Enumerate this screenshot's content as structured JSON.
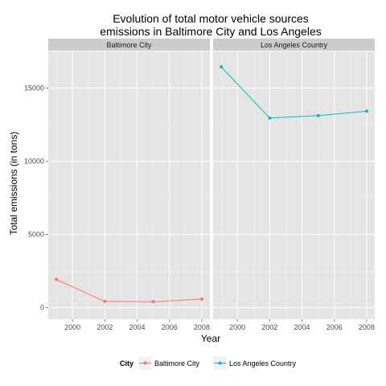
{
  "chart_data": {
    "type": "line",
    "title_line1": "Evolution of total motor vehicle sources",
    "title_line2": "emissions in Baltimore City and Los Angeles",
    "xlabel": "Year",
    "ylabel": "Total emissions (in tons)",
    "xlim": [
      1998.5,
      2008.5
    ],
    "ylim": [
      -800,
      17500
    ],
    "x_ticks": [
      2000,
      2002,
      2004,
      2006,
      2008
    ],
    "y_ticks": [
      0,
      5000,
      10000,
      15000
    ],
    "grid": true,
    "legend_placement": "bottom",
    "legend_title": "City",
    "facets": [
      "Baltimore City",
      "Los Angeles Country"
    ],
    "series": [
      {
        "name": "Baltimore City",
        "facet": "Baltimore City",
        "color": "#F8766D",
        "x": [
          1999,
          2002,
          2005,
          2008
        ],
        "y": [
          1920,
          420,
          400,
          580
        ]
      },
      {
        "name": "Los Angeles Country",
        "facet": "Los Angeles Country",
        "color": "#00BFC4",
        "x": [
          1999,
          2002,
          2005,
          2008
        ],
        "y": [
          16450,
          12950,
          13120,
          13420
        ]
      }
    ],
    "colors": {
      "panel_background": "#E5E5E5",
      "strip_background": "#CCCCCC",
      "grid_major": "#FFFFFF",
      "grid_minor": "#F2F2F2"
    }
  }
}
